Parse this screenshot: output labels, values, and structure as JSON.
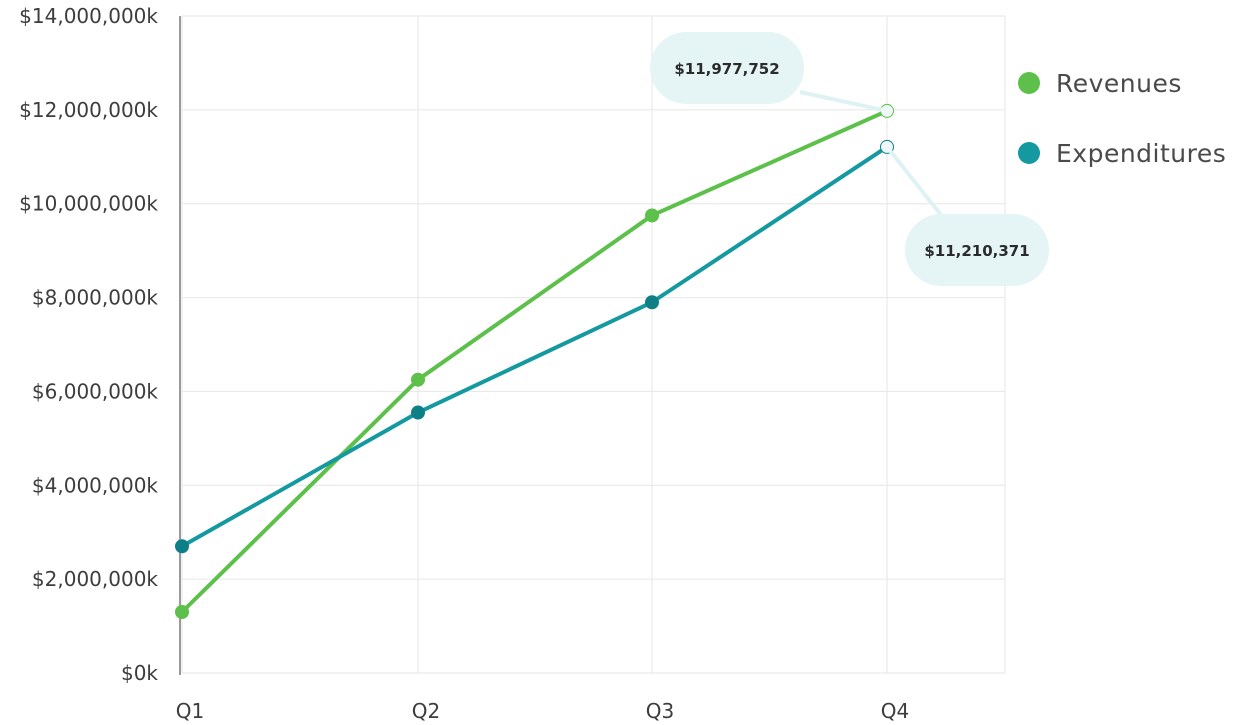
{
  "chart_data": {
    "type": "line",
    "categories": [
      "Q1",
      "Q2",
      "Q3",
      "Q4"
    ],
    "y_tick_labels": [
      "$0k",
      "$2,000,000k",
      "$4,000,000k",
      "$6,000,000k",
      "$8,000,000k",
      "$10,000,000k",
      "$12,000,000k",
      "$14,000,000k"
    ],
    "y_ticks": [
      0,
      2000000,
      4000000,
      6000000,
      8000000,
      10000000,
      12000000,
      14000000
    ],
    "ylim": [
      0,
      14000000
    ],
    "grid": true,
    "legend_position": "right",
    "series": [
      {
        "name": "Revenues",
        "color": "#5cc04a",
        "values": [
          1300000,
          6250000,
          9750000,
          11977752
        ]
      },
      {
        "name": "Expenditures",
        "color": "#13999f",
        "values": [
          2700000,
          5550000,
          7900000,
          11210371
        ]
      }
    ],
    "annotations": [
      {
        "series": 0,
        "index": 3,
        "text": "$11,977,752"
      },
      {
        "series": 1,
        "index": 3,
        "text": "$11,210,371"
      }
    ]
  }
}
